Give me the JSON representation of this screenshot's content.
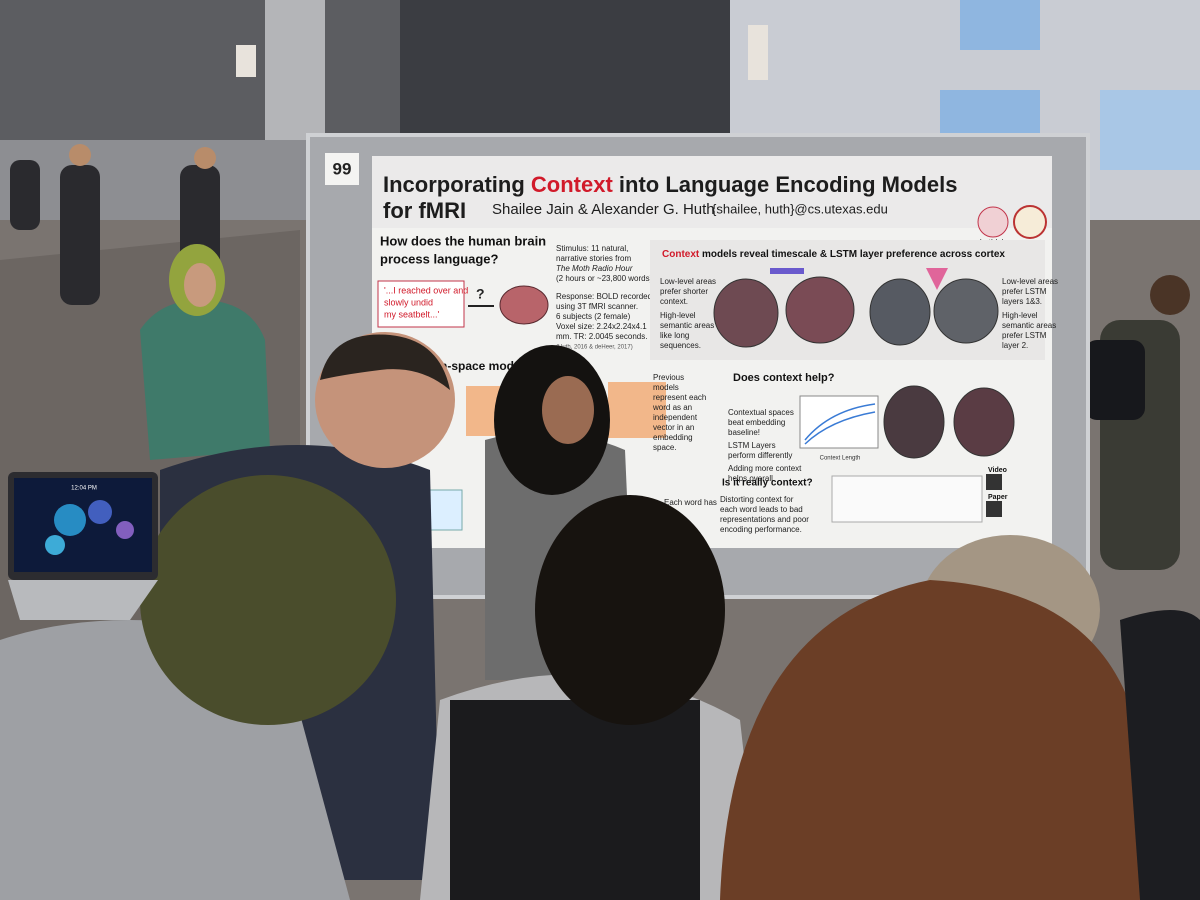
{
  "poster": {
    "number": "99",
    "title": {
      "part1": "Incorporating ",
      "highlight": "Context",
      "part2": " into Language Encoding Models",
      "line2": "for fMRI"
    },
    "authors": "Shailee Jain & Alexander G. Huth",
    "email": "{shailee, huth}@cs.utexas.edu",
    "lab": "huthlab",
    "intro": {
      "heading": [
        "How does the human brain",
        "process language?"
      ],
      "quote": [
        "'...I reached over and",
        "slowly undid",
        "my seatbelt...'"
      ],
      "question": "?",
      "stimulus": [
        "Stimulus: 11 natural,",
        "narrative stories from",
        "The Moth Radio Hour",
        "(2 hours or ~23,800 words)"
      ],
      "response": [
        "Response: BOLD recorded",
        "using 3T fMRI scanner.",
        "6 subjects (2 female)",
        "Voxel size: 2.24x2.24x4.1",
        "mm. TR: 2.0045 seconds."
      ],
      "citation": "(Huth, 2016 & deHeer, 2017)"
    },
    "results": {
      "heading_highlight": "Context",
      "heading_rest": " models reveal timescale & LSTM layer preference across cortex",
      "low_level": [
        "Low-level areas",
        "prefer shorter",
        "context."
      ],
      "high_level": [
        "High-level",
        "semantic areas",
        "like long",
        "sequences."
      ],
      "low_lstm": [
        "Low-level areas",
        "prefer LSTM",
        "layers 1&3."
      ],
      "high_lstm": [
        "High-level",
        "semantic areas",
        "prefer LSTM",
        "layer 2."
      ]
    },
    "embedding": {
      "heading": "n-space models",
      "previous": [
        "Previous",
        "models",
        "represent each",
        "word as an",
        "independent",
        "vector in an",
        "embedding",
        "space."
      ]
    },
    "help": {
      "heading": "Does context help?",
      "points": [
        "Contextual spaces",
        "beat embedding",
        "baseline!",
        "LSTM Layers",
        "perform differently",
        "Adding more context",
        "helps overall"
      ],
      "axis": "Context Length"
    },
    "really": {
      "heading": "Is it really context?",
      "text": [
        "Distorting context for",
        "each word leads to bad",
        "representations and poor",
        "encoding performance."
      ],
      "each_word": "Each word has"
    },
    "links": [
      "Video",
      "Paper"
    ]
  },
  "laptop": {
    "time": "12:04 PM"
  }
}
